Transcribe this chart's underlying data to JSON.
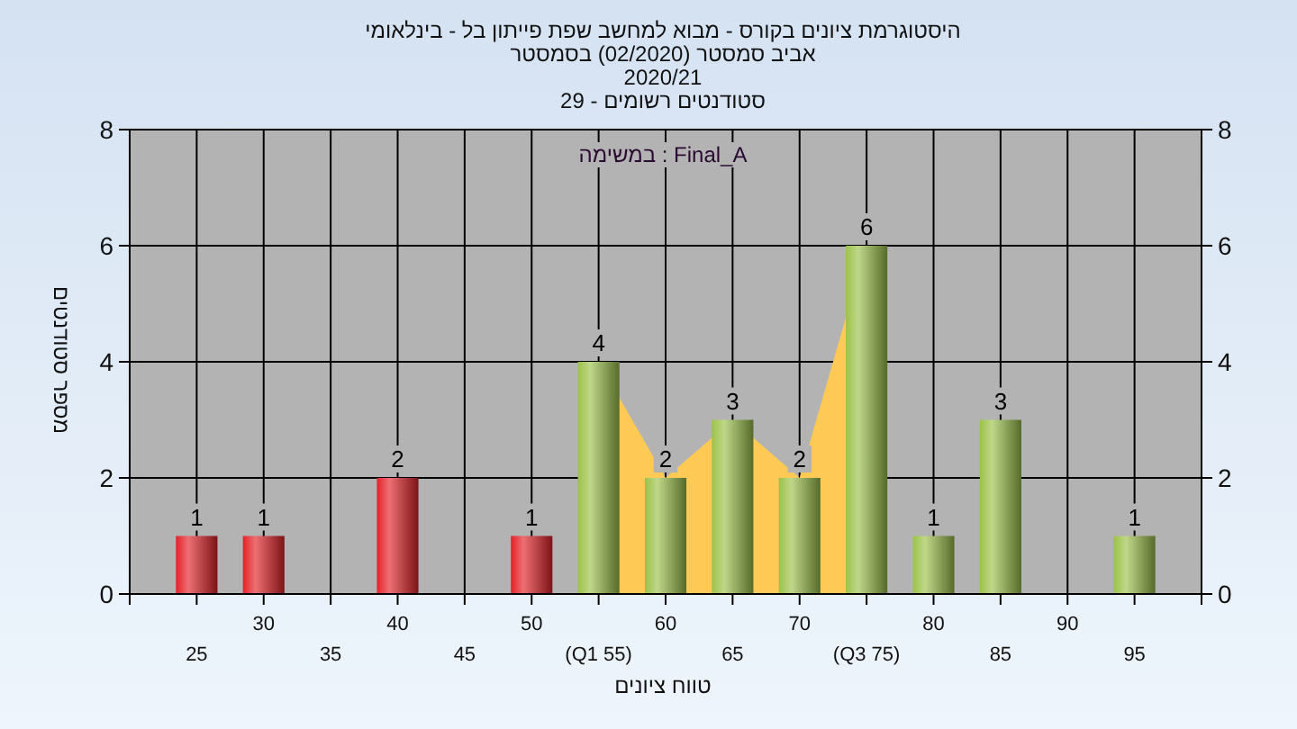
{
  "chart_data": {
    "type": "bar",
    "title": "היסטוגרמת ציונים בקורס - מבוא למחשב שפת פייתון בל - בינלאומי",
    "subtitle": "אביב סמסטר (02/2020) בסמסטר\n2020/21\nסטודנטים רשומים - 29",
    "xlabel": "טווח ציונים",
    "ylabel": "מספר סטודנטים",
    "annotations": [
      "Final_A : במשימה"
    ],
    "categories": [
      "25",
      "30",
      "35",
      "40",
      "45",
      "50",
      "(Q1 55)",
      "60",
      "65",
      "70",
      "(Q3 75)",
      "80",
      "85",
      "90",
      "95"
    ],
    "series": [
      {
        "type": "area",
        "color": "#ffc955",
        "values": [
          null,
          null,
          null,
          null,
          null,
          null,
          4,
          2,
          3,
          2,
          6,
          null,
          null,
          null,
          null
        ]
      },
      {
        "colors": [
          "#e42228",
          "#e42228",
          "#e42228",
          "#e42228",
          "#e42228",
          "#e42228",
          "#9cc24a",
          "#9cc24a",
          "#9cc24a",
          "#9cc24a",
          "#9cc24a",
          "#9cc24a",
          "#9cc24a",
          "#9cc24a",
          "#9cc24a"
        ],
        "values": [
          1,
          1,
          0,
          2,
          0,
          1,
          4,
          2,
          3,
          2,
          6,
          1,
          3,
          0,
          1
        ],
        "value_labels": [
          "1",
          "1",
          null,
          "2",
          null,
          "1",
          "4",
          "2",
          "3",
          "2",
          "6",
          "1",
          "3",
          null,
          "1"
        ]
      }
    ],
    "ylim": [
      0,
      8
    ],
    "yticks": [
      0,
      2,
      4,
      6,
      8
    ],
    "y2lim": [
      0,
      8
    ],
    "y2ticks": [
      0,
      2,
      4,
      6,
      8
    ],
    "grid": true
  }
}
